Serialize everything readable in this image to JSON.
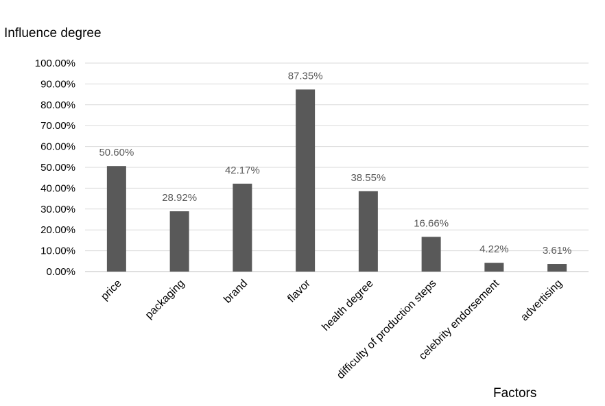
{
  "chart_data": {
    "type": "bar",
    "title": "",
    "ylabel": "Influence degree",
    "xlabel": "Factors",
    "categories": [
      "price",
      "packaging",
      "brand",
      "flavor",
      "health degree",
      "difficulty of production steps",
      "celebrity endorsement",
      "advertising"
    ],
    "values": [
      50.6,
      28.92,
      42.17,
      87.35,
      38.55,
      16.66,
      4.22,
      3.61
    ],
    "value_labels": [
      "50.60%",
      "28.92%",
      "42.17%",
      "87.35%",
      "38.55%",
      "16.66%",
      "4.22%",
      "3.61%"
    ],
    "yticks": [
      "0.00%",
      "10.00%",
      "20.00%",
      "30.00%",
      "40.00%",
      "50.00%",
      "60.00%",
      "70.00%",
      "80.00%",
      "90.00%",
      "100.00%"
    ],
    "ylim": [
      0,
      100
    ],
    "grid": true,
    "legend": "none",
    "colors": {
      "bar": "#595959",
      "grid": "#d9d9d9",
      "axis": "#bfbfbf",
      "label": "#595959"
    }
  }
}
